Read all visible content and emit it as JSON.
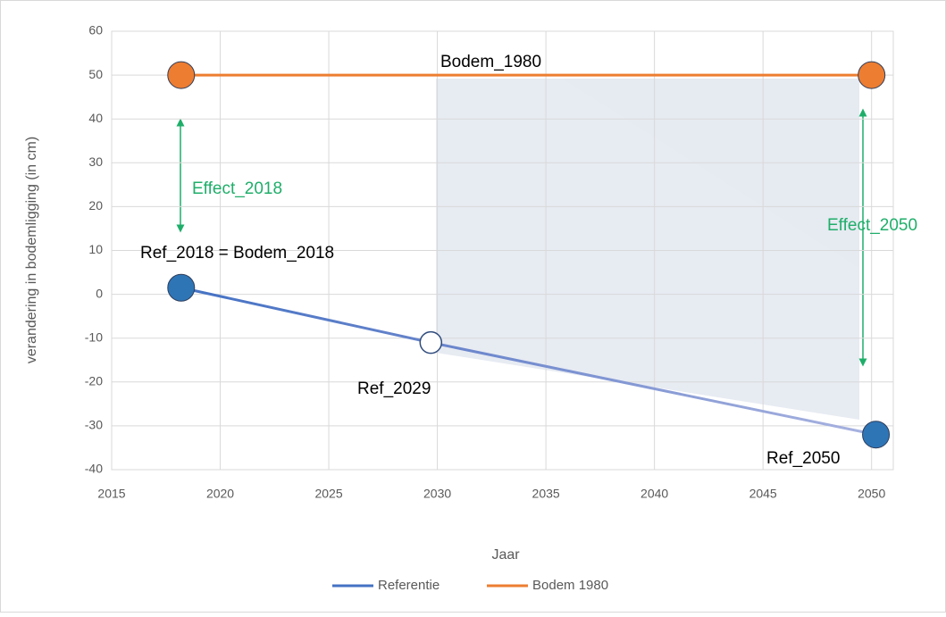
{
  "chart_data": {
    "type": "line",
    "x_label": "Jaar",
    "y_label": "verandering in bodemligging (in cm)",
    "xlim": [
      2015,
      2051
    ],
    "xticks": [
      2015,
      2020,
      2025,
      2030,
      2035,
      2040,
      2045,
      2050
    ],
    "ylim": [
      -40,
      60
    ],
    "yticks": [
      -40,
      -30,
      -20,
      -10,
      0,
      10,
      20,
      30,
      40,
      50,
      60
    ],
    "grid": true,
    "legend": "bottom",
    "series": [
      {
        "name": "Referentie",
        "color": "#4472c4",
        "marker_color": "#2e75b6",
        "x": [
          2018.2,
          2029.7,
          2050.2
        ],
        "values": [
          1.5,
          -11,
          -32
        ],
        "markers": [
          "filled",
          "hollow",
          "filled"
        ]
      },
      {
        "name": "Bodem 1980",
        "color": "#ed7d31",
        "marker_color": "#ed7d31",
        "x": [
          2018.2,
          2050
        ],
        "values": [
          50,
          50
        ],
        "markers": [
          "filled",
          "filled"
        ]
      }
    ],
    "annotations": [
      "Bodem_1980",
      "Effect_2018",
      "Effect_2050",
      "Ref_2018 = Bodem_2018",
      "Ref_2029",
      "Ref_2050"
    ]
  }
}
